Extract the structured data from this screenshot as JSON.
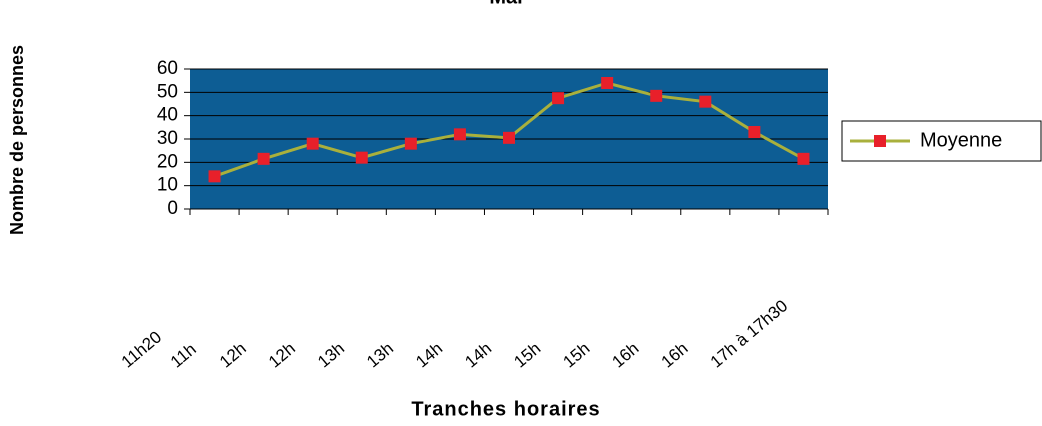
{
  "chart_data": {
    "type": "line",
    "title": "Mai",
    "categories": [
      "11h20 ",
      "11h",
      "12h",
      "12h",
      "13h",
      "13h",
      "14h",
      "14h",
      "15h",
      "15h",
      "16h",
      "16h",
      "17h à 17h30"
    ],
    "series": [
      {
        "name": "Moyenne",
        "color": "#a9b03c",
        "marker_color": "#e8202a",
        "values": [
          14,
          21.5,
          28,
          22,
          28,
          32,
          30.5,
          47.5,
          54,
          48.5,
          46,
          33,
          21.5
        ]
      }
    ],
    "ylim": [
      0,
      60
    ],
    "yticks": [
      0,
      10,
      20,
      30,
      40,
      50,
      60
    ],
    "grid": true,
    "x_label": "Tranches horaires",
    "y_label": "Nombre de personnes",
    "legend": "right"
  }
}
